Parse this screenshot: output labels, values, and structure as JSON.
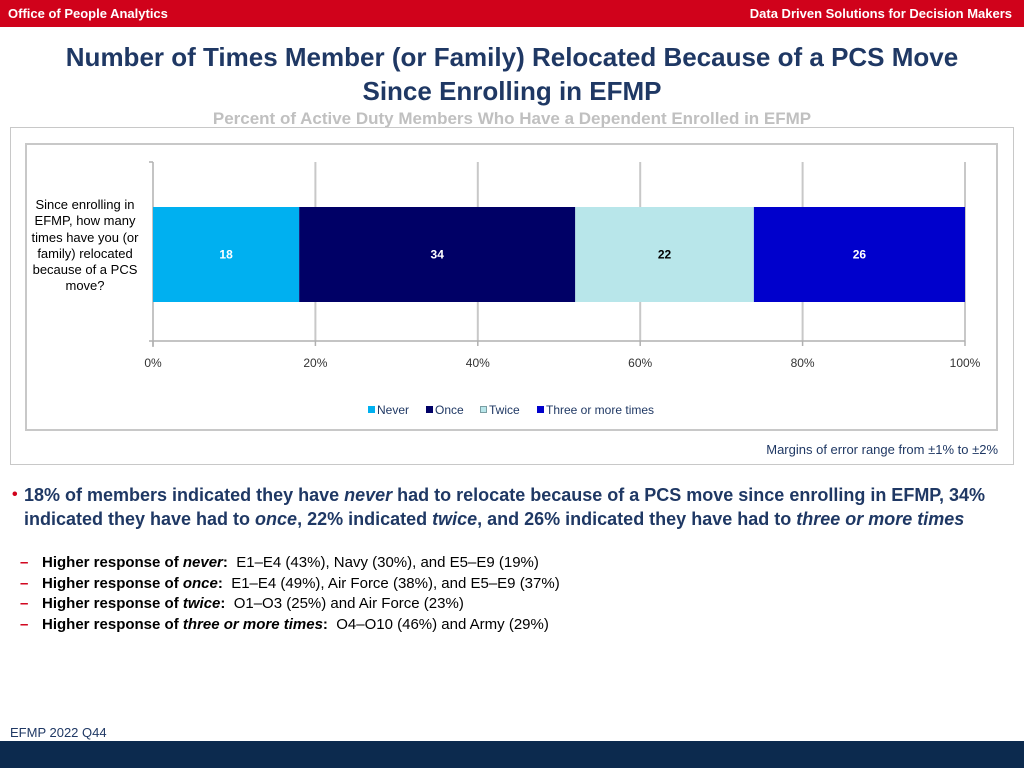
{
  "header": {
    "left": "Office of People Analytics",
    "right": "Data Driven Solutions for Decision Makers"
  },
  "title": {
    "line1": "Number of Times Member (or Family) Relocated Because of a PCS Move",
    "line2": "Since Enrolling in EFMP"
  },
  "subtitle": "Percent of Active Duty Members Who Have a Dependent Enrolled in EFMP",
  "chart_data": {
    "type": "bar",
    "orientation": "horizontal",
    "stacked": "100%",
    "categories": [
      "Since enrolling in EFMP, how many times have you (or family) relocated because of a PCS move?"
    ],
    "series": [
      {
        "name": "Never",
        "values": [
          18
        ],
        "label": "18",
        "color": "#00b0f0",
        "label_color": "#ffffff"
      },
      {
        "name": "Once",
        "values": [
          34
        ],
        "label": "34",
        "color": "#000066",
        "label_color": "#ffffff"
      },
      {
        "name": "Twice",
        "values": [
          22
        ],
        "label": "22",
        "color": "#b8e6ea",
        "label_color": "#000000"
      },
      {
        "name": "Three or more times",
        "values": [
          26
        ],
        "label": "26",
        "color": "#0000cc",
        "label_color": "#ffffff"
      }
    ],
    "xlim": [
      0,
      100
    ],
    "x_ticks": [
      0,
      20,
      40,
      60,
      80,
      100
    ],
    "x_tick_labels": [
      "0%",
      "20%",
      "40%",
      "60%",
      "80%",
      "100%"
    ],
    "grid": true,
    "legend_position": "bottom",
    "xlabel": "",
    "ylabel": ""
  },
  "margin_note": "Margins of error range from ±1% to ±2%",
  "summary": {
    "p1": "18% of members indicated they have ",
    "e1": "never",
    "p2": " had to relocate because of a PCS move since enrolling in EFMP, 34% indicated they have had to ",
    "e2": "once",
    "p3": ", 22% indicated ",
    "e3": "twice",
    "p4": ", and 26% indicated they have had to ",
    "e4": "three or more times"
  },
  "details": [
    {
      "dash": "–",
      "prefix": "Higher response of ",
      "term": "never",
      "suffix": ":",
      "text": "  E1–E4 (43%), Navy (30%), and E5–E9 (19%)"
    },
    {
      "dash": "–",
      "prefix": "Higher response of ",
      "term": "once",
      "suffix": ":",
      "text": "  E1–E4 (49%), Air Force (38%), and E5–E9 (37%)"
    },
    {
      "dash": "–",
      "prefix": "Higher response of ",
      "term": "twice",
      "suffix": ":",
      "text": "  O1–O3 (25%) and Air Force (23%)"
    },
    {
      "dash": "–",
      "prefix": "Higher response of ",
      "term": "three or more times",
      "suffix": ":",
      "text": "  O4–O10 (46%) and Army (29%)"
    }
  ],
  "footer_note": "EFMP 2022 Q44"
}
